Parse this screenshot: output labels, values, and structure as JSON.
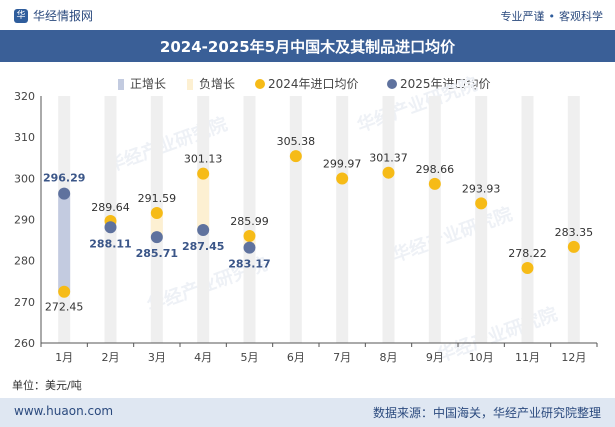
{
  "header": {
    "brand": "华经情报网",
    "slogan_left": "专业严谨",
    "slogan_right": "客观科学"
  },
  "footer": {
    "website": "www.huaon.com",
    "source": "数据来源：中国海关，华经产业研究院整理"
  },
  "colors": {
    "title_bar": "#3a5f97",
    "positive_bar": "#c3cbe0",
    "negative_bar": "#fdf0d2",
    "series_2024": "#f6bb17",
    "series_2025": "#5f729e",
    "label_2025": "#3b5688",
    "column_bg": "#efefef"
  },
  "chart_data": {
    "type": "line",
    "title": "2024-2025年5月中国木及其制品进口均价",
    "unit_label": "单位：美元/吨",
    "categories": [
      "1月",
      "2月",
      "3月",
      "4月",
      "5月",
      "6月",
      "7月",
      "8月",
      "9月",
      "10月",
      "11月",
      "12月"
    ],
    "ylim": [
      260,
      320
    ],
    "yticks": [
      260,
      270,
      280,
      290,
      300,
      310,
      320
    ],
    "legend": [
      "正增长",
      "负增长",
      "2024年进口均价",
      "2025年进口均价"
    ],
    "legend_position": "top",
    "series": [
      {
        "name": "2024年进口均价",
        "values": [
          272.45,
          289.64,
          291.59,
          301.13,
          285.99,
          305.38,
          299.97,
          301.37,
          298.66,
          293.93,
          278.22,
          283.35
        ]
      },
      {
        "name": "2025年进口均价",
        "values": [
          296.29,
          288.11,
          285.71,
          287.45,
          283.17,
          null,
          null,
          null,
          null,
          null,
          null,
          null
        ]
      }
    ],
    "labels_2024": [
      "272.45",
      "289.64",
      "291.59",
      "301.13",
      "285.99",
      "305.38",
      "299.97",
      "301.37",
      "298.66",
      "293.93",
      "278.22",
      "283.35"
    ],
    "labels_2025": [
      "296.29",
      "288.11",
      "285.71",
      "287.45",
      "283.17"
    ]
  },
  "watermark": "华经产业研究院"
}
